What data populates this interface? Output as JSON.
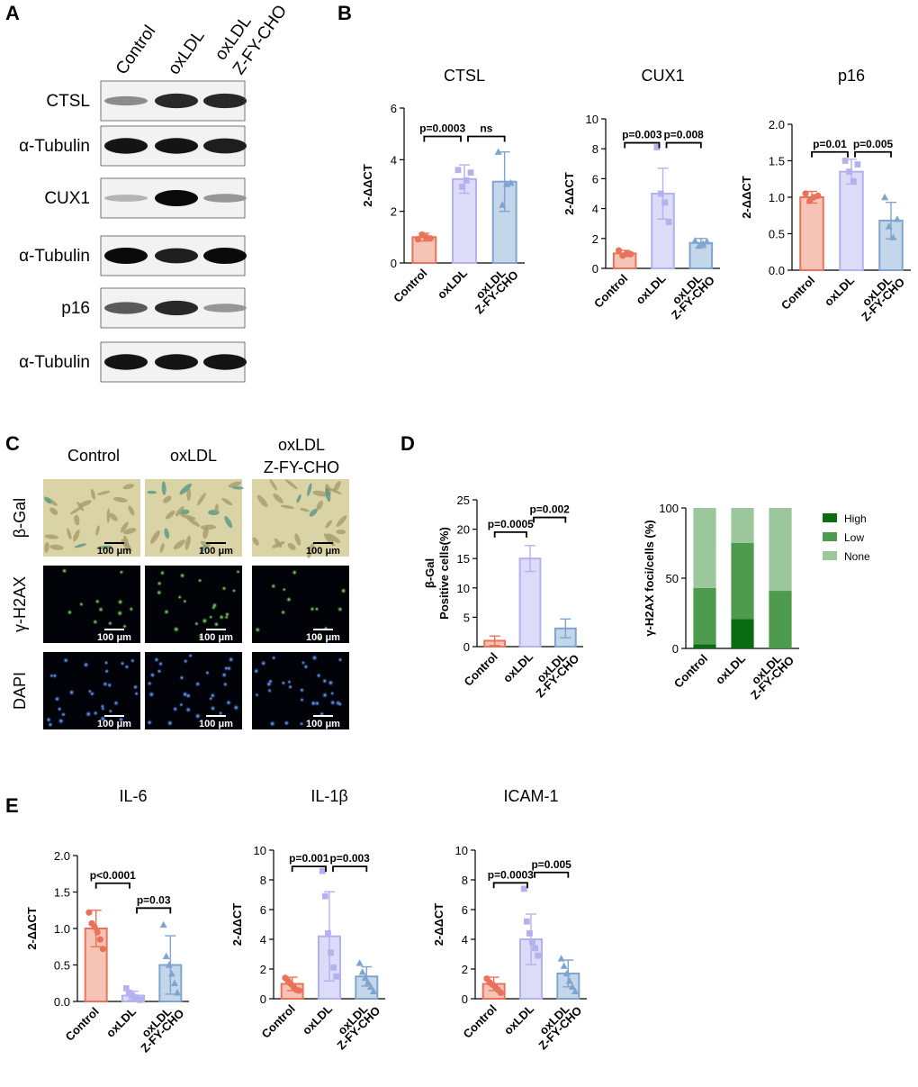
{
  "panel_labels": [
    "A",
    "B",
    "C",
    "D",
    "E"
  ],
  "western_blot": {
    "columns": [
      {
        "label": "Control",
        "label2": ""
      },
      {
        "label": "oxLDL",
        "label2": ""
      },
      {
        "label": "oxLDL",
        "label2": "Z-FY-CHO"
      }
    ],
    "rows": [
      {
        "name": "CTSL",
        "intensity": [
          0.35,
          0.85,
          0.85
        ]
      },
      {
        "name": "α-Tubulin",
        "intensity": [
          0.95,
          0.95,
          0.9
        ]
      },
      {
        "name": "CUX1",
        "intensity": [
          0.15,
          1.0,
          0.3
        ]
      },
      {
        "name": "α-Tubulin",
        "intensity": [
          1.0,
          0.9,
          1.0
        ]
      },
      {
        "name": "p16",
        "intensity": [
          0.6,
          0.85,
          0.3
        ]
      },
      {
        "name": "α-Tubulin",
        "intensity": [
          0.95,
          0.95,
          0.95
        ]
      }
    ]
  },
  "micrographs": {
    "columns": [
      {
        "label": "Control",
        "label2": ""
      },
      {
        "label": "oxLDL",
        "label2": ""
      },
      {
        "label": "oxLDL",
        "label2": "Z-FY-CHO"
      }
    ],
    "rows": [
      {
        "label": "β-Gal",
        "type": "bgal"
      },
      {
        "label": "γ-H2AX",
        "type": "h2ax"
      },
      {
        "label": "DAPI",
        "type": "dapi"
      }
    ],
    "scale_bar": "100 μm"
  },
  "colors": {
    "control": "#e8735a",
    "oxldl": "#b4b2ee",
    "zfy": "#7fa5cf",
    "control_fill": "#f6c3b7",
    "oxldl_fill": "#dcdbf8",
    "zfy_fill": "#c3d6ea",
    "high": "#0b6b12",
    "low": "#4e9a4e",
    "none": "#9cc79c"
  },
  "chart_data": [
    {
      "id": "ctsl",
      "type": "bar",
      "title": "CTSL",
      "ylabel": "2-ΔΔCT",
      "ylim": [
        0,
        6
      ],
      "yticks": [
        "0",
        "2",
        "4",
        "6"
      ],
      "categories": [
        {
          "a": "Control",
          "b": ""
        },
        {
          "a": "oxLDL",
          "b": ""
        },
        {
          "a": "oxLDL",
          "b": "Z-FY-CHO"
        }
      ],
      "values": [
        1.0,
        3.25,
        3.15
      ],
      "errors": [
        0.15,
        0.55,
        1.15
      ],
      "points": [
        [
          0.92,
          1.1,
          1.0,
          0.95
        ],
        [
          3.6,
          2.95,
          3.2,
          3.5
        ],
        [
          4.3,
          2.25,
          3.05,
          3.1
        ]
      ],
      "markers": [
        "circle",
        "square",
        "triangle"
      ],
      "stats": [
        {
          "from": 0,
          "to": 1,
          "text": "p=0.0003",
          "y": 4.9
        },
        {
          "from": 1,
          "to": 2,
          "text": "ns",
          "y": 4.9
        }
      ]
    },
    {
      "id": "cux1",
      "type": "bar",
      "title": "CUX1",
      "ylabel": "2-ΔΔCT",
      "ylim": [
        0,
        10
      ],
      "yticks": [
        "0",
        "2",
        "4",
        "6",
        "8",
        "10"
      ],
      "categories": [
        {
          "a": "Control",
          "b": ""
        },
        {
          "a": "oxLDL",
          "b": ""
        },
        {
          "a": "oxLDL",
          "b": "Z-FY-CHO"
        }
      ],
      "values": [
        1.0,
        5.0,
        1.7
      ],
      "errors": [
        0.2,
        1.7,
        0.3
      ],
      "points": [
        [
          1.2,
          0.85,
          1.0,
          0.95
        ],
        [
          8.1,
          5.0,
          4.4,
          3.1
        ],
        [
          1.85,
          1.5,
          1.65,
          1.8
        ]
      ],
      "markers": [
        "circle",
        "square",
        "triangle"
      ],
      "stats": [
        {
          "from": 0,
          "to": 1,
          "text": "p=0.003",
          "y": 8.4
        },
        {
          "from": 1,
          "to": 2,
          "text": "p=0.008",
          "y": 8.4
        }
      ]
    },
    {
      "id": "p16",
      "type": "bar",
      "title": "p16",
      "ylabel": "2-ΔΔCT",
      "ylim": [
        0,
        2
      ],
      "yticks": [
        "0.0",
        "0.5",
        "1.0",
        "1.5",
        "2.0"
      ],
      "categories": [
        {
          "a": "Control",
          "b": ""
        },
        {
          "a": "oxLDL",
          "b": ""
        },
        {
          "a": "oxLDL",
          "b": "Z-FY-CHO"
        }
      ],
      "values": [
        1.0,
        1.35,
        0.68
      ],
      "errors": [
        0.08,
        0.17,
        0.25
      ],
      "points": [
        [
          1.05,
          0.95,
          1.0,
          1.02
        ],
        [
          1.5,
          1.35,
          1.22,
          1.45
        ],
        [
          1.0,
          0.6,
          0.45,
          0.7
        ]
      ],
      "markers": [
        "circle",
        "square",
        "triangle"
      ],
      "stats": [
        {
          "from": 0,
          "to": 1,
          "text": "p=0.01",
          "y": 1.62
        },
        {
          "from": 1,
          "to": 2,
          "text": "p=0.005",
          "y": 1.62
        }
      ]
    },
    {
      "id": "bgal",
      "type": "bar",
      "title": "",
      "ylabel": "β-Gal",
      "ylabel2": "Positive cells(%)",
      "ylim": [
        0,
        25
      ],
      "yticks": [
        "0",
        "5",
        "10",
        "15",
        "20",
        "25"
      ],
      "categories": [
        {
          "a": "Control",
          "b": ""
        },
        {
          "a": "oxLDL",
          "b": ""
        },
        {
          "a": "oxLDL",
          "b": "Z-FY-CHO"
        }
      ],
      "values": [
        1.0,
        15.0,
        3.1
      ],
      "errors": [
        0.8,
        2.2,
        1.6
      ],
      "points": [
        [],
        [],
        []
      ],
      "markers": [
        "circle",
        "square",
        "triangle"
      ],
      "stats": [
        {
          "from": 0,
          "to": 1,
          "text": "p=0.0005",
          "y": 19.5
        },
        {
          "from": 1,
          "to": 2,
          "text": "p=0.002",
          "y": 22.0
        }
      ]
    },
    {
      "id": "h2ax",
      "type": "stacked_bar",
      "title": "",
      "ylabel": "γ-H2AX foci/cells (%)",
      "ylim": [
        0,
        100
      ],
      "yticks": [
        "0",
        "50",
        "100"
      ],
      "categories": [
        {
          "a": "Control",
          "b": ""
        },
        {
          "a": "oxLDL",
          "b": ""
        },
        {
          "a": "oxLDL",
          "b": "Z-FY-CHO"
        }
      ],
      "series": [
        {
          "name": "High",
          "values": [
            3,
            21,
            0
          ]
        },
        {
          "name": "Low",
          "values": [
            40,
            54,
            41
          ]
        },
        {
          "name": "None",
          "values": [
            57,
            25,
            59
          ]
        }
      ],
      "legend": "right"
    },
    {
      "id": "il6",
      "type": "bar",
      "title": "IL-6",
      "ylabel": "2-ΔΔCT",
      "ylim": [
        0,
        2
      ],
      "yticks": [
        "0.0",
        "0.5",
        "1.0",
        "1.5",
        "2.0"
      ],
      "categories": [
        {
          "a": "Control",
          "b": ""
        },
        {
          "a": "oxLDL",
          "b": ""
        },
        {
          "a": "oxLDL",
          "b": "Z-FY-CHO"
        }
      ],
      "values": [
        1.0,
        0.08,
        0.5
      ],
      "errors": [
        0.25,
        0.06,
        0.4
      ],
      "points": [
        [
          1.22,
          1.07,
          1.02,
          0.95,
          0.85,
          0.72
        ],
        [
          0.18,
          0.12,
          0.08,
          0.06,
          0.04,
          0.02
        ],
        [
          1.05,
          0.62,
          0.5,
          0.38,
          0.25,
          0.12
        ]
      ],
      "markers": [
        "circle",
        "square",
        "triangle"
      ],
      "stats": [
        {
          "from": 0,
          "to": 1,
          "text": "p<0.0001",
          "y": 1.62
        },
        {
          "from": 1,
          "to": 2,
          "text": "p=0.03",
          "y": 1.28
        }
      ]
    },
    {
      "id": "il1b",
      "type": "bar",
      "title": "IL-1β",
      "ylabel": "2-ΔΔCT",
      "ylim": [
        0,
        10
      ],
      "yticks": [
        "0",
        "2",
        "4",
        "6",
        "8",
        "10"
      ],
      "categories": [
        {
          "a": "Control",
          "b": ""
        },
        {
          "a": "oxLDL",
          "b": ""
        },
        {
          "a": "oxLDL",
          "b": "Z-FY-CHO"
        }
      ],
      "values": [
        1.0,
        4.2,
        1.5
      ],
      "errors": [
        0.45,
        3.0,
        0.65
      ],
      "points": [
        [
          1.4,
          1.2,
          1.0,
          0.8,
          0.6,
          0.55
        ],
        [
          8.6,
          6.9,
          4.4,
          3.1,
          2.1,
          1.5
        ],
        [
          2.4,
          1.8,
          1.4,
          1.1,
          0.8,
          0.5
        ]
      ],
      "markers": [
        "circle",
        "square",
        "triangle"
      ],
      "stats": [
        {
          "from": 0,
          "to": 1,
          "text": "p=0.001",
          "y": 8.9
        },
        {
          "from": 1,
          "to": 2,
          "text": "p=0.003",
          "y": 8.9
        }
      ]
    },
    {
      "id": "icam1",
      "type": "bar",
      "title": "ICAM-1",
      "ylabel": "2-ΔΔCT",
      "ylim": [
        0,
        10
      ],
      "yticks": [
        "0",
        "2",
        "4",
        "6",
        "8",
        "10"
      ],
      "categories": [
        {
          "a": "Control",
          "b": ""
        },
        {
          "a": "oxLDL",
          "b": ""
        },
        {
          "a": "oxLDL",
          "b": "Z-FY-CHO"
        }
      ],
      "values": [
        1.0,
        4.0,
        1.7
      ],
      "errors": [
        0.45,
        1.7,
        0.9
      ],
      "points": [
        [
          1.35,
          1.1,
          0.95,
          0.8,
          0.6,
          0.4
        ],
        [
          7.4,
          5.2,
          4.4,
          3.8,
          3.4,
          2.9
        ],
        [
          2.7,
          2.2,
          1.7,
          1.2,
          0.8,
          0.5
        ]
      ],
      "markers": [
        "circle",
        "square",
        "triangle"
      ],
      "stats": [
        {
          "from": 0,
          "to": 1,
          "text": "p=0.0003",
          "y": 7.8
        },
        {
          "from": 1,
          "to": 2,
          "text": "p=0.005",
          "y": 8.5
        }
      ]
    }
  ]
}
